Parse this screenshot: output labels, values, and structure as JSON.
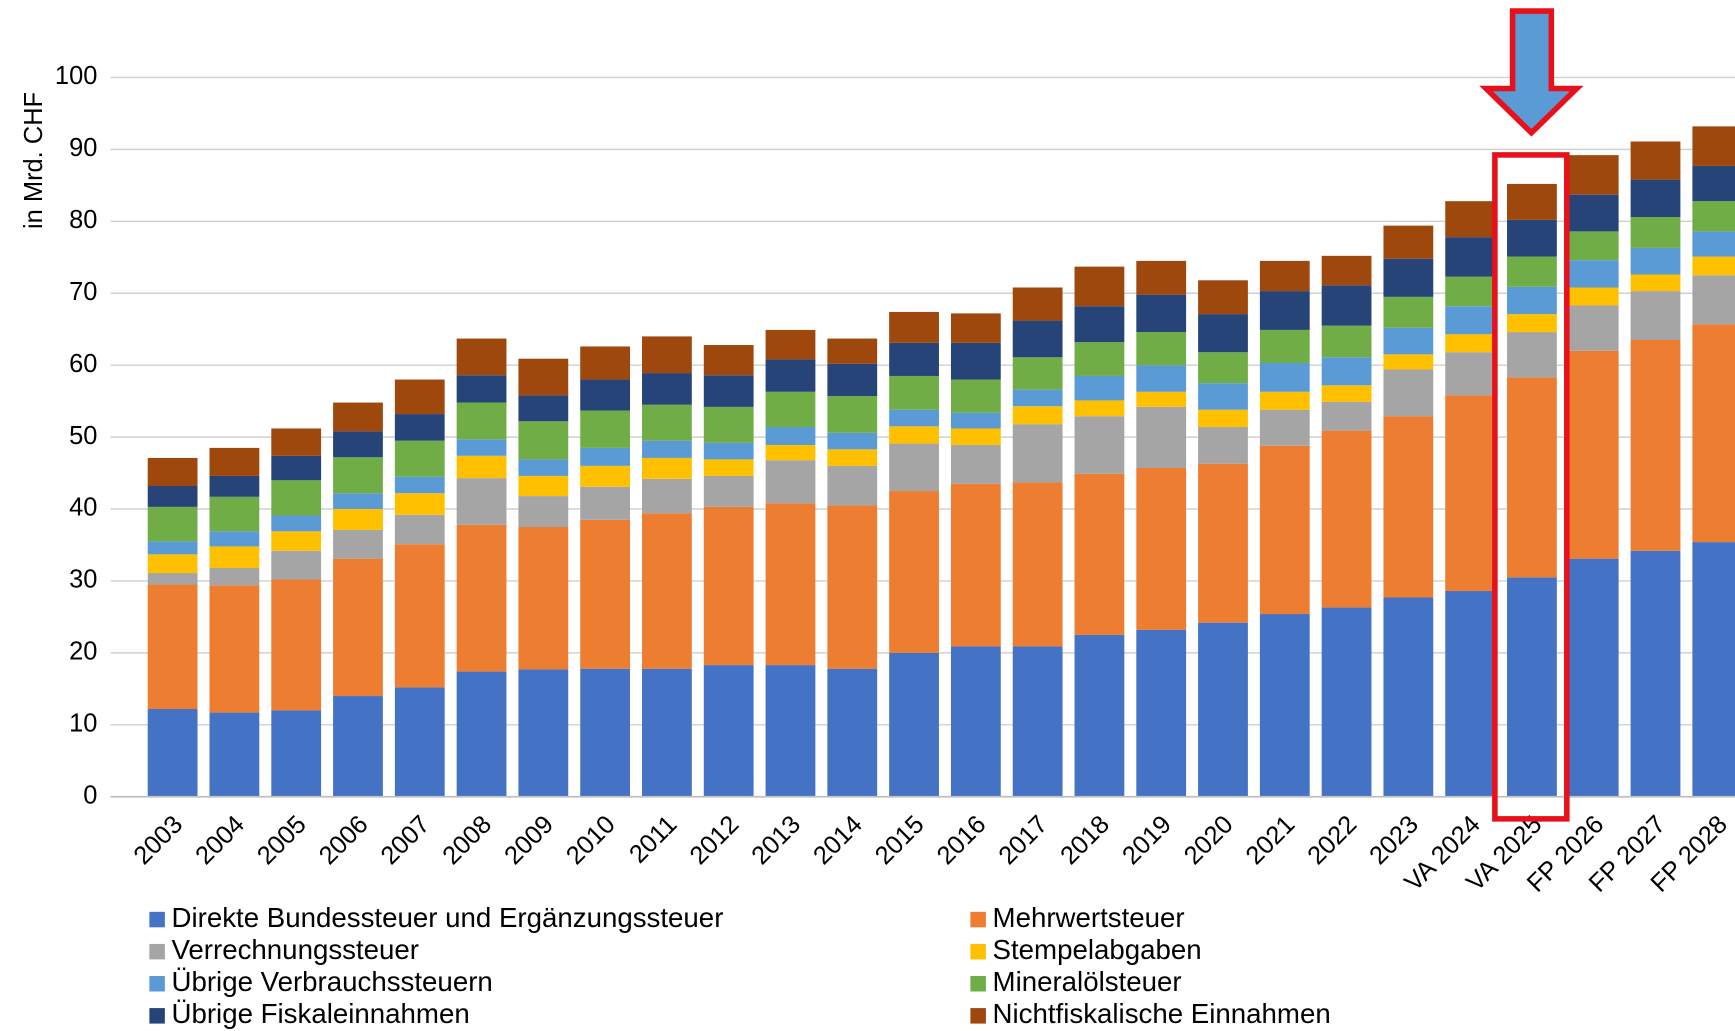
{
  "chart_data": {
    "type": "stacked-bar",
    "y_label": "in Mrd. CHF",
    "categories": [
      "2003",
      "2004",
      "2005",
      "2006",
      "2007",
      "2008",
      "2009",
      "2010",
      "2011",
      "2012",
      "2013",
      "2014",
      "2015",
      "2016",
      "2017",
      "2018",
      "2019",
      "2020",
      "2021",
      "2022",
      "2023",
      "VA 2024",
      "VA 2025",
      "FP 2026",
      "FP 2027",
      "FP 2028"
    ],
    "ylim": [
      0,
      100
    ],
    "yticks": [
      0,
      10,
      20,
      30,
      40,
      50,
      60,
      70,
      80,
      90,
      100
    ],
    "grid": true,
    "series": [
      {
        "name": "Direkte Bundessteuer und Ergänzungssteuer",
        "color": "#4472c4",
        "values": [
          12.2,
          11.7,
          12.0,
          14.0,
          15.2,
          17.4,
          17.7,
          17.8,
          17.8,
          18.3,
          18.3,
          17.8,
          20.0,
          20.9,
          20.9,
          22.5,
          23.2,
          24.2,
          25.4,
          26.3,
          27.7,
          28.6,
          30.5,
          33.1,
          34.2,
          35.4
        ]
      },
      {
        "name": "Mehrwertsteuer",
        "color": "#ed7d31",
        "values": [
          17.3,
          17.7,
          18.2,
          19.1,
          19.9,
          20.4,
          19.8,
          20.7,
          21.6,
          22.0,
          22.5,
          22.7,
          22.5,
          22.6,
          22.8,
          22.4,
          22.5,
          22.1,
          23.4,
          24.6,
          25.2,
          27.2,
          27.8,
          28.9,
          29.3,
          30.3
        ]
      },
      {
        "name": "Verrechnungssteuer",
        "color": "#a5a5a5",
        "values": [
          1.6,
          2.4,
          4.0,
          4.0,
          4.1,
          6.5,
          4.3,
          4.6,
          4.8,
          4.3,
          6.0,
          5.5,
          6.6,
          5.4,
          8.1,
          8.0,
          8.5,
          5.1,
          5.0,
          4.0,
          6.5,
          6.0,
          6.3,
          6.3,
          6.8,
          6.8
        ]
      },
      {
        "name": "Stempelabgaben",
        "color": "#ffc000",
        "values": [
          2.6,
          3.0,
          2.7,
          2.9,
          3.0,
          3.1,
          2.8,
          2.9,
          2.9,
          2.3,
          2.1,
          2.3,
          2.4,
          2.3,
          2.5,
          2.2,
          2.1,
          2.4,
          2.5,
          2.3,
          2.1,
          2.5,
          2.5,
          2.5,
          2.3,
          2.6
        ]
      },
      {
        "name": "Übrige Verbrauchssteuern",
        "color": "#5b9bd5",
        "values": [
          1.8,
          2.1,
          2.2,
          2.2,
          2.3,
          2.3,
          2.3,
          2.5,
          2.4,
          2.3,
          2.5,
          2.3,
          2.3,
          2.2,
          2.3,
          3.4,
          3.7,
          3.7,
          4.0,
          3.9,
          3.7,
          3.9,
          3.8,
          3.8,
          3.7,
          3.5
        ]
      },
      {
        "name": "Mineralölsteuer",
        "color": "#70ad47",
        "values": [
          4.8,
          4.8,
          4.9,
          5.0,
          5.0,
          5.1,
          5.3,
          5.2,
          5.0,
          5.0,
          4.9,
          5.1,
          4.7,
          4.6,
          4.5,
          4.7,
          4.6,
          4.3,
          4.6,
          4.4,
          4.3,
          4.1,
          4.2,
          4.0,
          4.3,
          4.2
        ]
      },
      {
        "name": "Übrige Fiskaleinnahmen",
        "color": "#264478",
        "values": [
          2.9,
          2.9,
          3.4,
          3.6,
          3.7,
          3.8,
          3.6,
          4.3,
          4.4,
          4.4,
          4.5,
          4.5,
          4.6,
          5.1,
          5.1,
          5.0,
          5.2,
          5.3,
          5.4,
          5.6,
          5.3,
          5.5,
          5.1,
          5.1,
          5.2,
          4.9
        ]
      },
      {
        "name": "Nichtfiskalische Einnahmen",
        "color": "#9e480e",
        "values": [
          3.9,
          3.9,
          3.8,
          4.0,
          4.8,
          5.1,
          5.1,
          4.6,
          5.1,
          4.2,
          4.1,
          3.5,
          4.3,
          4.1,
          4.6,
          5.5,
          4.7,
          4.7,
          4.2,
          4.1,
          4.6,
          5.0,
          5.0,
          5.5,
          5.3,
          5.5
        ]
      }
    ]
  }
}
